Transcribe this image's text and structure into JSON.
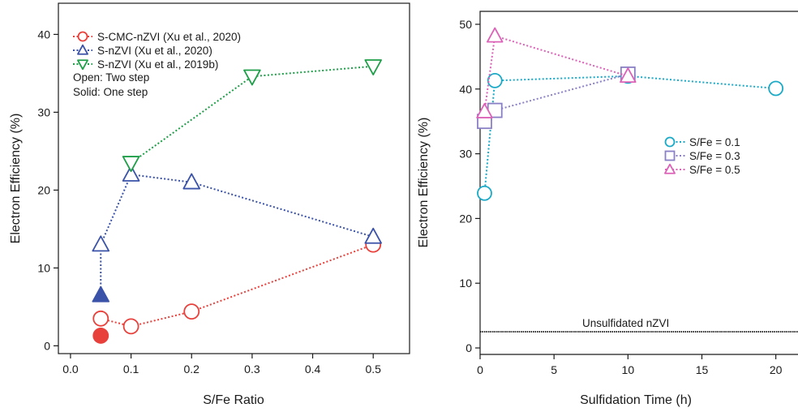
{
  "chart_data": [
    {
      "type": "scatter",
      "title": "",
      "xlabel": "S/Fe Ratio",
      "ylabel": "Electron Efficiency (%)",
      "xlim": [
        -0.02,
        0.56
      ],
      "ylim": [
        -1,
        44
      ],
      "xticks": [
        "0.0",
        "0.1",
        "0.2",
        "0.3",
        "0.4",
        "0.5"
      ],
      "xtick_values": [
        0.0,
        0.1,
        0.2,
        0.3,
        0.4,
        0.5
      ],
      "yticks": [
        "0",
        "10",
        "20",
        "30",
        "40"
      ],
      "ytick_values": [
        0,
        10,
        20,
        30,
        40
      ],
      "legend_placement": "top-left",
      "legend_notes": [
        "Open: Two step",
        "Solid: One step"
      ],
      "series": [
        {
          "name": "S-CMC-nZVI (Xu et al., 2020)",
          "marker": "circle",
          "color": "#e8413c",
          "line_points": [
            [
              0.05,
              3.5
            ],
            [
              0.1,
              2.5
            ],
            [
              0.2,
              4.4
            ],
            [
              0.5,
              13.0
            ]
          ],
          "open_points": [
            [
              0.05,
              3.5
            ],
            [
              0.1,
              2.5
            ],
            [
              0.2,
              4.4
            ],
            [
              0.5,
              13.0
            ]
          ],
          "solid_points": [
            [
              0.05,
              1.3
            ]
          ]
        },
        {
          "name": "S-nZVI (Xu et al., 2020)",
          "marker": "triangle-up",
          "color": "#3a52a8",
          "line_points": [
            [
              0.05,
              13.0
            ],
            [
              0.1,
              22.0
            ],
            [
              0.2,
              21.0
            ],
            [
              0.5,
              14.0
            ]
          ],
          "open_points": [
            [
              0.05,
              13.0
            ],
            [
              0.1,
              22.0
            ],
            [
              0.2,
              21.0
            ],
            [
              0.5,
              14.0
            ]
          ],
          "solid_points": [
            [
              0.05,
              6.5
            ]
          ],
          "vertical_link": [
            [
              0.05,
              6.5
            ],
            [
              0.05,
              13.0
            ]
          ]
        },
        {
          "name": "S-nZVI (Xu et al., 2019b)",
          "marker": "triangle-down",
          "color": "#1e9e48",
          "line_points": [
            [
              0.1,
              23.5
            ],
            [
              0.3,
              34.6
            ],
            [
              0.5,
              35.9
            ]
          ],
          "open_points": [
            [
              0.1,
              23.5
            ],
            [
              0.3,
              34.6
            ],
            [
              0.5,
              35.9
            ]
          ],
          "solid_points": []
        }
      ]
    },
    {
      "type": "scatter",
      "title": "",
      "xlabel": "Sulfidation Time (h)",
      "ylabel": "Electron Efficiency (%)",
      "xlim": [
        0,
        21.5
      ],
      "ylim": [
        -1,
        52
      ],
      "xticks": [
        "0",
        "5",
        "10",
        "15",
        "20"
      ],
      "xtick_values": [
        0,
        5,
        10,
        15,
        20
      ],
      "yticks": [
        "0",
        "10",
        "20",
        "30",
        "40",
        "50"
      ],
      "ytick_values": [
        0,
        10,
        20,
        30,
        40,
        50
      ],
      "legend_placement": "right",
      "reference_line": {
        "label": "Unsulfidated nZVI",
        "y": 2.5
      },
      "series": [
        {
          "name": "S/Fe = 0.1",
          "marker": "circle",
          "color": "#1aaac7",
          "points": [
            [
              0.3,
              23.9
            ],
            [
              1.0,
              41.3
            ],
            [
              10.0,
              42.0
            ],
            [
              20.0,
              40.1
            ]
          ]
        },
        {
          "name": "S/Fe = 0.3",
          "marker": "square",
          "color": "#8a80c6",
          "points": [
            [
              0.3,
              35.0
            ],
            [
              1.0,
              36.7
            ],
            [
              10.0,
              42.3
            ]
          ]
        },
        {
          "name": "S/Fe = 0.5",
          "marker": "triangle-up",
          "color": "#dc62b8",
          "points": [
            [
              0.3,
              36.5
            ],
            [
              1.0,
              48.2
            ],
            [
              10.0,
              42.0
            ]
          ]
        }
      ]
    }
  ]
}
